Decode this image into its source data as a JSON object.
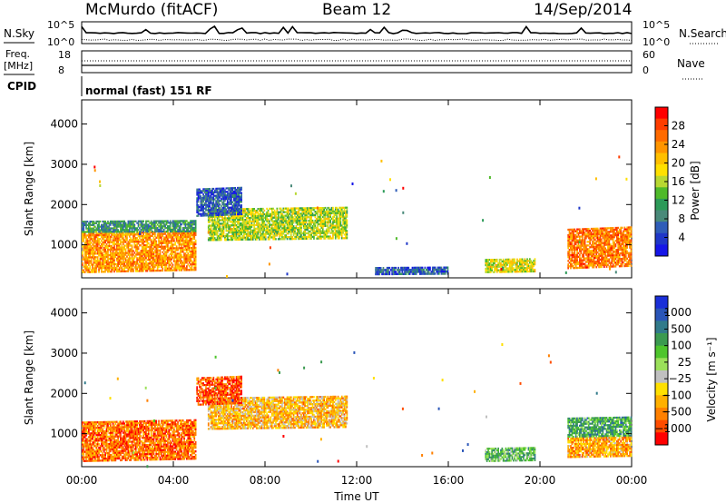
{
  "header": {
    "station": "McMurdo (fitACF)",
    "beam": "Beam 12",
    "date": "14/Sep/2014"
  },
  "top_panel": {
    "nsky_label": "N.Sky",
    "nsky_ticks": [
      "10^5",
      "10^0"
    ],
    "nsearch_label": "N.Search",
    "nsearch_ticks": [
      "10^5",
      "10^0"
    ],
    "freq_label": "Freq.",
    "freq_unit": "[MHz]",
    "freq_ticks": [
      "18",
      "8"
    ],
    "nave_label": "Nave",
    "nave_ticks": [
      "60",
      "0"
    ],
    "cpid_label": "CPID",
    "cpid_value": "normal (fast) 151 RF"
  },
  "chart_data": [
    {
      "type": "heatmap",
      "panel": "power",
      "ylabel": "Slant Range [km]",
      "yticks": [
        1000,
        2000,
        3000,
        4000
      ],
      "ylim": [
        180,
        4600
      ],
      "xlim": [
        0,
        24
      ],
      "x_tick_labels": [
        "00:00",
        "04:00",
        "08:00",
        "12:00",
        "16:00",
        "20:00",
        "00:00"
      ],
      "colorbar": {
        "label": "Power [dB]",
        "ticks": [
          "28",
          "24",
          "20",
          "16",
          "12",
          "8",
          "4"
        ],
        "colors": [
          "#ff0000",
          "#ff3d00",
          "#ff6a00",
          "#ff9500",
          "#ffbf00",
          "#ffe000",
          "#b8d832",
          "#4fba2a",
          "#2c9a58",
          "#4a8a7a",
          "#2f5db8",
          "#1f37c8",
          "#1616e8"
        ]
      },
      "regions": [
        {
          "t0": 0,
          "t1": 5,
          "r0": 300,
          "r1": 1300,
          "level": 0.75
        },
        {
          "t0": 0,
          "t1": 5,
          "r0": 1300,
          "r1": 1600,
          "level": 0.3
        },
        {
          "t0": 5.5,
          "t1": 11.6,
          "r0": 1100,
          "r1": 1900,
          "level": 0.5
        },
        {
          "t0": 5.0,
          "t1": 7.0,
          "r0": 1700,
          "r1": 2400,
          "level": 0.15
        },
        {
          "t0": 12.8,
          "t1": 16,
          "r0": 250,
          "r1": 450,
          "level": 0.15
        },
        {
          "t0": 17.6,
          "t1": 19.8,
          "r0": 300,
          "r1": 650,
          "level": 0.55
        },
        {
          "t0": 21.2,
          "t1": 24,
          "r0": 400,
          "r1": 1400,
          "level": 0.8
        }
      ]
    },
    {
      "type": "heatmap",
      "panel": "velocity",
      "ylabel": "Slant Range [km]",
      "yticks": [
        1000,
        2000,
        3000,
        4000
      ],
      "ylim": [
        180,
        4600
      ],
      "xlim": [
        0,
        24
      ],
      "x_tick_labels": [
        "00:00",
        "04:00",
        "08:00",
        "12:00",
        "16:00",
        "20:00",
        "00:00"
      ],
      "xlabel": "Time UT",
      "colorbar": {
        "label": "Velocity [m s⁻¹]",
        "ticks": [
          "1000",
          "500",
          "100",
          "25",
          "−25",
          "−100",
          "−500",
          "−1000"
        ],
        "colors": [
          "#1a2fd8",
          "#2a55b8",
          "#317a8a",
          "#3b9a50",
          "#4ec52c",
          "#9be05a",
          "#c0c0c0",
          "#ffe000",
          "#ffb000",
          "#ff8000",
          "#ff4c00",
          "#ff0000"
        ]
      },
      "regions": [
        {
          "t0": 0,
          "t1": 5,
          "r0": 300,
          "r1": 1300,
          "level": 0.15
        },
        {
          "t0": 5.5,
          "t1": 11.6,
          "r0": 1100,
          "r1": 1900,
          "level": 0.3
        },
        {
          "t0": 5.0,
          "t1": 7.0,
          "r0": 1700,
          "r1": 2400,
          "level": 0.1
        },
        {
          "t0": 17.6,
          "t1": 19.8,
          "r0": 300,
          "r1": 650,
          "level": 0.65
        },
        {
          "t0": 21.2,
          "t1": 24,
          "r0": 900,
          "r1": 1400,
          "level": 0.7
        },
        {
          "t0": 21.2,
          "t1": 24,
          "r0": 400,
          "r1": 900,
          "level": 0.25
        }
      ]
    }
  ]
}
